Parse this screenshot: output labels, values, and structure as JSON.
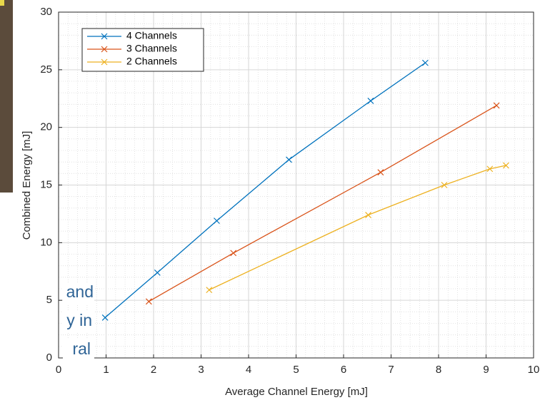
{
  "side_text": [
    "and",
    "y in",
    "ral"
  ],
  "chart_data": {
    "type": "line",
    "xlabel": "Average Channel Energy [mJ]",
    "ylabel": "Combined Energy [mJ]",
    "xlim": [
      0,
      10
    ],
    "ylim": [
      0,
      30
    ],
    "xticks": [
      0,
      1,
      2,
      3,
      4,
      5,
      6,
      7,
      8,
      9,
      10
    ],
    "yticks": [
      0,
      5,
      10,
      15,
      20,
      25,
      30
    ],
    "grid": true,
    "minor_grid": true,
    "legend": "upper left",
    "marker": "x",
    "series": [
      {
        "name": "4 Channels",
        "color": "#0072bd",
        "x": [
          0.98,
          2.08,
          3.33,
          4.85,
          6.57,
          7.72
        ],
        "values": [
          3.5,
          7.4,
          11.9,
          17.2,
          22.3,
          25.6
        ]
      },
      {
        "name": "3 Channels",
        "color": "#d95319",
        "x": [
          1.9,
          3.68,
          6.78,
          9.22
        ],
        "values": [
          4.9,
          9.1,
          16.1,
          21.9
        ]
      },
      {
        "name": "2 Channels",
        "color": "#edb120",
        "x": [
          3.17,
          6.52,
          8.12,
          9.08,
          9.42
        ],
        "values": [
          5.9,
          12.4,
          15.0,
          16.4,
          16.7
        ]
      }
    ]
  }
}
